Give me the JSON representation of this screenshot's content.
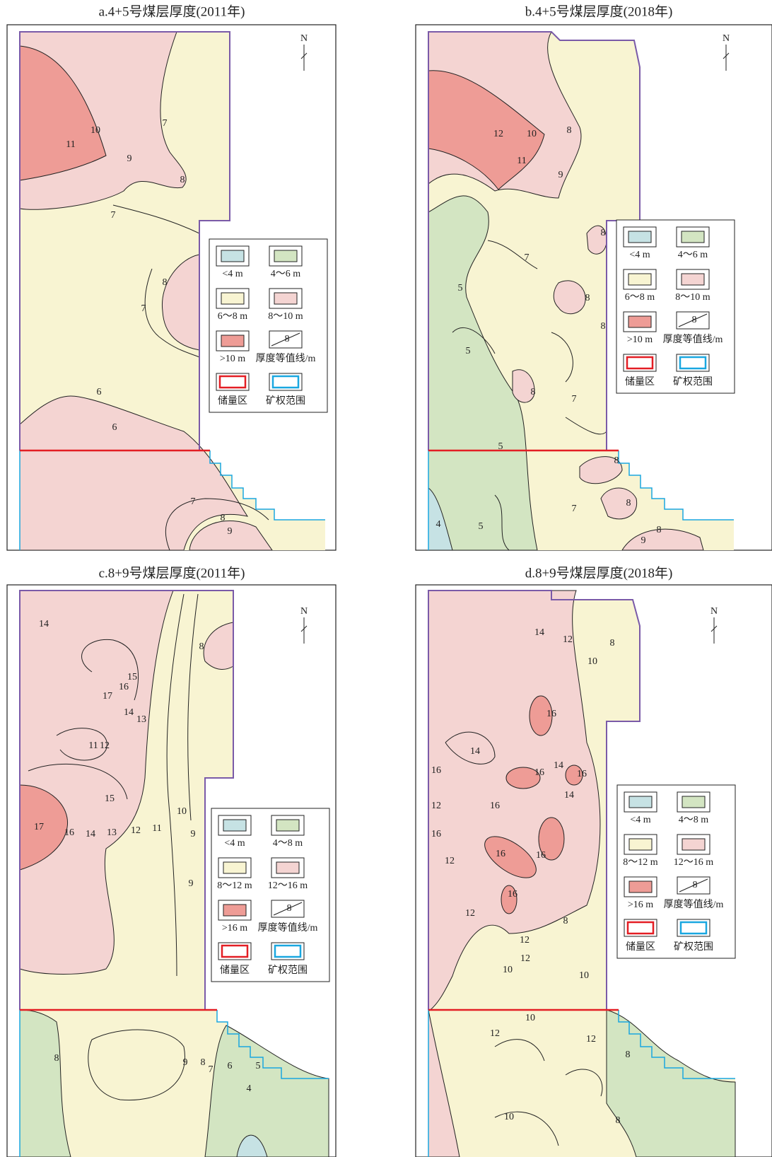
{
  "panels": [
    {
      "title": "a.4+5号煤层厚度(2011年)",
      "north": "N",
      "legend": [
        {
          "label": "<4 m"
        },
        {
          "label": "4～6 m"
        },
        {
          "label": "6～8 m"
        },
        {
          "label": "8～10 m"
        },
        {
          "label": ">10 m"
        },
        {
          "label": "厚度等值线/m"
        },
        {
          "label": "储量区"
        },
        {
          "label": "矿权范围"
        }
      ],
      "legend_contour_value": 8,
      "contour_labels": [
        10,
        11,
        7,
        9,
        8,
        7,
        8,
        7,
        6,
        6,
        7,
        8,
        9
      ]
    },
    {
      "title": "b.4+5号煤层厚度(2018年)",
      "north": "N",
      "legend": [
        {
          "label": "<4 m"
        },
        {
          "label": "4～6 m"
        },
        {
          "label": "6～8 m"
        },
        {
          "label": "8～10 m"
        },
        {
          "label": ">10 m"
        },
        {
          "label": "厚度等值线/m"
        },
        {
          "label": "储量区"
        },
        {
          "label": "矿权范围"
        }
      ],
      "legend_contour_value": 8,
      "contour_labels": [
        12,
        10,
        11,
        8,
        9,
        8,
        7,
        5,
        8,
        8,
        5,
        8,
        7,
        5,
        8,
        8,
        7,
        4,
        5,
        9,
        8
      ]
    },
    {
      "title": "c.8+9号煤层厚度(2011年)",
      "north": "N",
      "legend": [
        {
          "label": "<4 m"
        },
        {
          "label": "4～8 m"
        },
        {
          "label": "8～12 m"
        },
        {
          "label": "12～16 m"
        },
        {
          "label": ">16 m"
        },
        {
          "label": "厚度等值线/m"
        },
        {
          "label": "储量区"
        },
        {
          "label": "矿权范围"
        }
      ],
      "legend_contour_value": 8,
      "contour_labels": [
        14,
        15,
        16,
        17,
        14,
        13,
        11,
        12,
        8,
        15,
        17,
        16,
        14,
        13,
        12,
        11,
        10,
        9,
        9,
        8,
        9,
        8,
        7,
        6,
        5,
        4
      ]
    },
    {
      "title": "d.8+9号煤层厚度(2018年)",
      "north": "N",
      "legend": [
        {
          "label": "<4 m"
        },
        {
          "label": "4～8 m"
        },
        {
          "label": "8～12 m"
        },
        {
          "label": "12～16 m"
        },
        {
          "label": ">16 m"
        },
        {
          "label": "厚度等值线/m"
        },
        {
          "label": "储量区"
        },
        {
          "label": "矿权范围"
        }
      ],
      "legend_contour_value": 8,
      "contour_labels": [
        14,
        12,
        10,
        8,
        16,
        14,
        16,
        16,
        14,
        16,
        14,
        12,
        16,
        16,
        12,
        16,
        16,
        16,
        12,
        8,
        12,
        10,
        12,
        10,
        10,
        12,
        12,
        8,
        10,
        8
      ]
    }
  ]
}
